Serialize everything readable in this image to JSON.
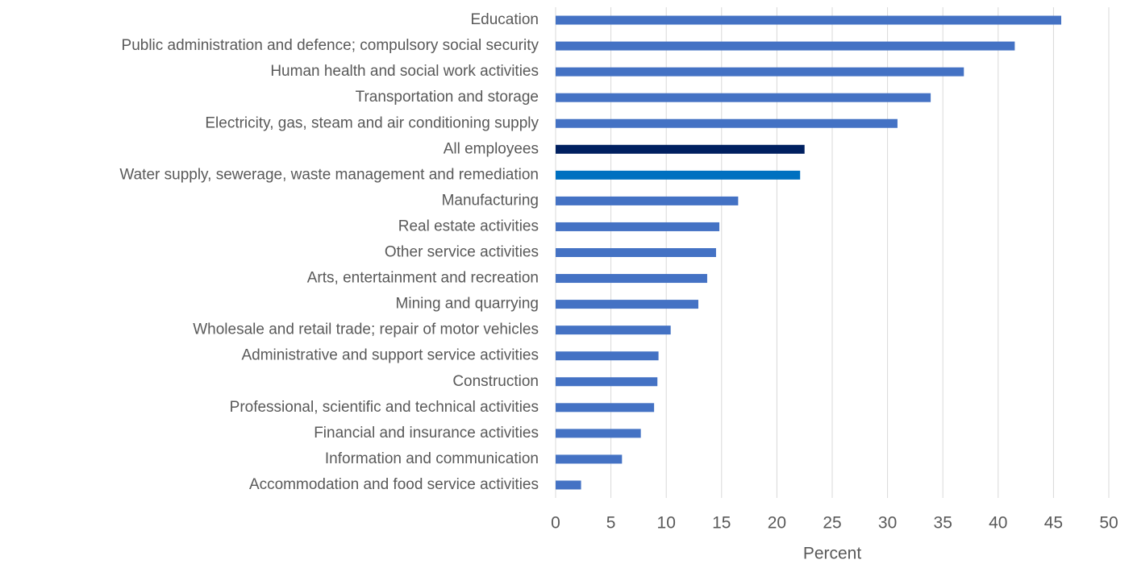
{
  "chart_data": {
    "type": "barh",
    "xlabel": "Percent",
    "categories": [
      "Education",
      "Public administration and defence; compulsory social security",
      "Human health and social work activities",
      "Transportation and storage",
      "Electricity, gas, steam and air conditioning supply",
      "All employees",
      "Water supply, sewerage, waste management and remediation",
      "Manufacturing",
      "Real estate activities",
      "Other service activities",
      "Arts, entertainment and recreation",
      "Mining and quarrying",
      "Wholesale and retail trade; repair of motor vehicles",
      "Administrative and support service activities",
      "Construction",
      "Professional, scientific and technical activities",
      "Financial and insurance activities",
      "Information and communication",
      "Accommodation and food service activities"
    ],
    "values": [
      45.7,
      41.5,
      36.9,
      33.9,
      30.9,
      22.5,
      22.1,
      16.5,
      14.8,
      14.5,
      13.7,
      12.9,
      10.4,
      9.3,
      9.2,
      8.9,
      7.7,
      6.0,
      2.3
    ],
    "colors": [
      "#4472c4",
      "#4472c4",
      "#4472c4",
      "#4472c4",
      "#4472c4",
      "#002060",
      "#0070c0",
      "#4472c4",
      "#4472c4",
      "#4472c4",
      "#4472c4",
      "#4472c4",
      "#4472c4",
      "#4472c4",
      "#4472c4",
      "#4472c4",
      "#4472c4",
      "#4472c4",
      "#4472c4"
    ],
    "xlim": [
      0,
      50
    ],
    "xticks": [
      0,
      5,
      10,
      15,
      20,
      25,
      30,
      35,
      40,
      45,
      50
    ],
    "grid": true
  }
}
